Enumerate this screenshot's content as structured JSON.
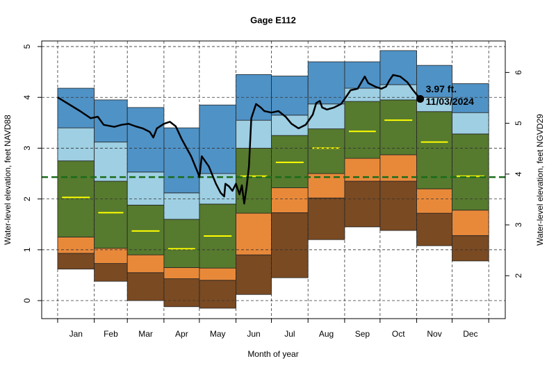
{
  "chart_data": {
    "type": "percentile-steps",
    "title": "Gage E112",
    "xlabel": "Month of year",
    "ylabel": "Water-level elevation, feet NAVD88",
    "y2label": "Water-level elevation, feet NGVD29",
    "categories": [
      "Jan",
      "Feb",
      "Mar",
      "Apr",
      "May",
      "Jun",
      "Jul",
      "Aug",
      "Sep",
      "Oct",
      "Nov",
      "Dec"
    ],
    "xlim": [
      -12.5,
      380
    ],
    "xticks": [
      1,
      32,
      60,
      91,
      121,
      152,
      182,
      213,
      244,
      274,
      305,
      335,
      366
    ],
    "ylim": [
      -0.355,
      5.11
    ],
    "yticks": [
      0,
      1,
      2,
      3,
      4,
      5
    ],
    "y2lim": [
      1.155,
      6.62
    ],
    "y2ticks": [
      2,
      3,
      4,
      5,
      6
    ],
    "grid": true,
    "levels": [
      [
        0.62,
        0.38,
        0.0,
        -0.12,
        -0.15,
        0.12,
        0.45,
        1.2,
        1.45,
        1.38,
        1.08,
        0.78
      ],
      [
        0.93,
        0.73,
        0.55,
        0.43,
        0.4,
        0.9,
        1.73,
        2.02,
        2.35,
        2.35,
        1.72,
        1.28
      ],
      [
        1.25,
        1.03,
        0.9,
        0.65,
        0.64,
        1.72,
        2.22,
        2.5,
        2.8,
        2.87,
        2.2,
        1.78
      ],
      [
        2.75,
        2.35,
        1.88,
        1.6,
        1.9,
        3.0,
        3.25,
        3.38,
        3.92,
        3.95,
        3.72,
        3.28
      ],
      [
        3.4,
        3.12,
        2.53,
        2.12,
        2.5,
        3.55,
        3.65,
        3.87,
        4.18,
        4.25,
        4.0,
        3.7
      ],
      [
        4.18,
        3.95,
        3.8,
        3.4,
        3.85,
        4.45,
        4.42,
        4.7,
        4.7,
        4.92,
        4.63,
        4.27
      ]
    ],
    "band_colors": [
      "#7a4a22",
      "#e8893a",
      "#567a2e",
      "#9ecfe3",
      "#4f92c6"
    ],
    "median": {
      "color": "#ffff00",
      "values": [
        2.03,
        1.73,
        1.37,
        1.02,
        1.27,
        2.45,
        2.72,
        3.0,
        3.33,
        3.55,
        3.12,
        2.45
      ]
    },
    "reference_line": {
      "value": 2.43,
      "color": "#1a6b1a"
    },
    "daily": {
      "color": "#000000",
      "x": [
        1,
        20,
        29,
        35,
        40,
        49,
        55,
        61,
        67,
        73,
        79,
        82,
        85,
        91,
        96,
        101,
        106,
        114,
        120,
        121,
        123,
        129,
        135,
        139,
        142,
        143,
        146,
        149,
        152,
        155,
        157,
        159,
        161,
        163,
        165,
        169,
        173,
        176,
        182,
        188,
        194,
        199,
        205,
        211,
        217,
        220,
        223,
        225,
        229,
        235,
        241,
        245,
        249,
        255,
        261,
        264,
        270,
        275,
        279,
        282,
        285,
        291,
        297,
        302,
        308
      ],
      "values": [
        4.0,
        3.73,
        3.59,
        3.62,
        3.46,
        3.42,
        3.46,
        3.48,
        3.43,
        3.39,
        3.32,
        3.21,
        3.39,
        3.48,
        3.52,
        3.43,
        3.18,
        2.84,
        2.5,
        2.43,
        2.84,
        2.64,
        2.3,
        2.12,
        2.05,
        2.3,
        2.25,
        2.16,
        2.3,
        2.09,
        2.27,
        1.91,
        2.23,
        2.64,
        3.59,
        3.87,
        3.8,
        3.73,
        3.7,
        3.73,
        3.62,
        3.48,
        3.39,
        3.46,
        3.66,
        3.89,
        3.93,
        3.8,
        3.76,
        3.8,
        3.87,
        4.0,
        4.14,
        4.17,
        4.41,
        4.28,
        4.21,
        4.17,
        4.21,
        4.34,
        4.44,
        4.41,
        4.3,
        4.14,
        3.97
      ]
    },
    "annotations": [
      "3.97 ft.",
      "11/03/2024"
    ]
  }
}
